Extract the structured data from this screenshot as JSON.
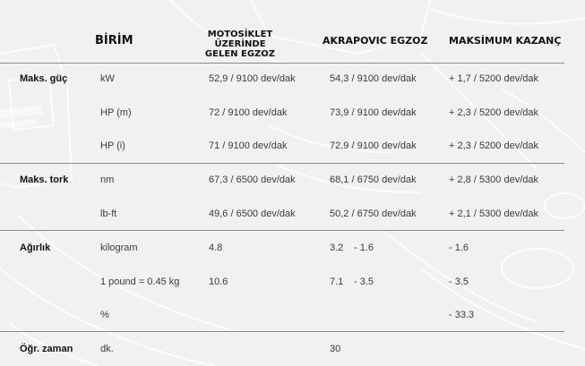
{
  "headers": {
    "unit": "BİRİM",
    "stock_line1": "MOTOSİKLET ÜZERİNDE",
    "stock_line2": "GELEN EGZOZ",
    "akrapovic": "AKRAPOVIC EGZOZ",
    "gain": "MAKSİMUM KAZANÇ"
  },
  "rows": [
    {
      "group": "Maks. güç",
      "unit": "kW",
      "stock": "52,9 / 9100 dev/dak",
      "akra": "54,3 / 9100 dev/dak",
      "akra_diff": "",
      "gain": "+ 1,7 / 5200 dev/dak"
    },
    {
      "group": "",
      "unit": "HP (m)",
      "stock": "72 / 9100 dev/dak",
      "akra": "73,9 / 9100 dev/dak",
      "akra_diff": "",
      "gain": "+ 2,3 / 5200 dev/dak"
    },
    {
      "group": "",
      "unit": "HP (i)",
      "stock": "71 / 9100 dev/dak",
      "akra": "72,9 / 9100 dev/dak",
      "akra_diff": "",
      "gain": "+ 2,3 / 5200 dev/dak"
    },
    {
      "group": "Maks. tork",
      "unit": "nm",
      "stock": "67,3 / 6500 dev/dak",
      "akra": "68,1 / 6750 dev/dak",
      "akra_diff": "",
      "gain": "+ 2,8 / 5300 dev/dak"
    },
    {
      "group": "",
      "unit": "lb-ft",
      "stock": "49,6 / 6500 dev/dak",
      "akra": "50,2 / 6750 dev/dak",
      "akra_diff": "",
      "gain": "+ 2,1 / 5300 dev/dak"
    },
    {
      "group": "Ağırlık",
      "unit": "kilogram",
      "stock": "4.8",
      "akra": "3.2",
      "akra_diff": "- 1.6",
      "gain": "- 1.6"
    },
    {
      "group": "",
      "unit": "1 pound = 0.45 kg",
      "stock": "10.6",
      "akra": "7.1",
      "akra_diff": "- 3.5",
      "gain": "- 3.5"
    },
    {
      "group": "",
      "unit": "%",
      "stock": "",
      "akra": "",
      "akra_diff": "",
      "gain": "- 33.3"
    },
    {
      "group": "Öğr. zaman",
      "unit": "dk.",
      "stock": "",
      "akra": "30",
      "akra_diff": "",
      "gain": ""
    }
  ]
}
